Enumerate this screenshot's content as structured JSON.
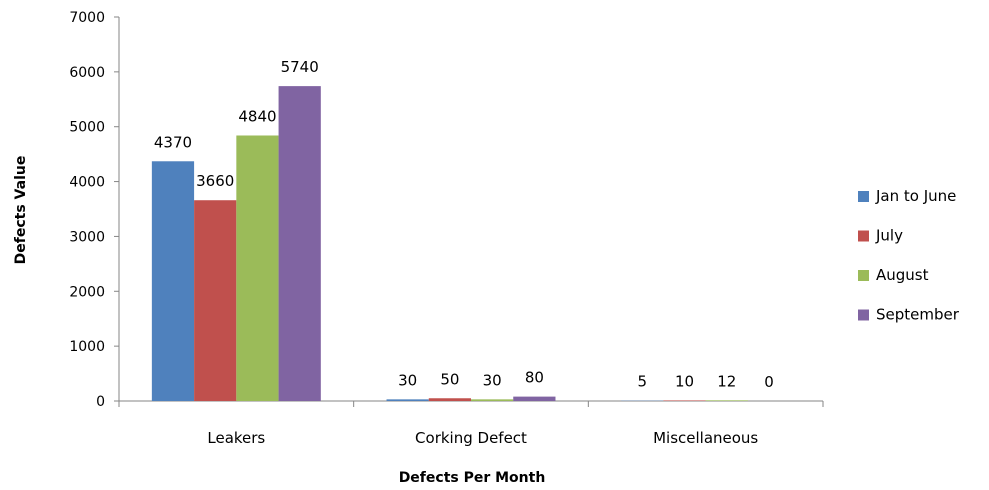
{
  "chart_data": {
    "type": "bar",
    "categories": [
      "Leakers",
      "Corking Defect",
      "Miscellaneous"
    ],
    "series": [
      {
        "name": "Jan to June",
        "values": [
          4370,
          30,
          5
        ],
        "color": "#4F81BD"
      },
      {
        "name": "July",
        "values": [
          3660,
          50,
          10
        ],
        "color": "#C0504D"
      },
      {
        "name": "August",
        "values": [
          4840,
          30,
          12
        ],
        "color": "#9BBB59"
      },
      {
        "name": "September",
        "values": [
          5740,
          80,
          0
        ],
        "color": "#8064A2"
      }
    ],
    "title": "",
    "xlabel": "Defects Per Month",
    "ylabel": "Defects Value",
    "ylim": [
      0,
      7000
    ],
    "yticks": [
      0,
      1000,
      2000,
      3000,
      4000,
      5000,
      6000,
      7000
    ],
    "grid": false,
    "legend_position": "right"
  }
}
